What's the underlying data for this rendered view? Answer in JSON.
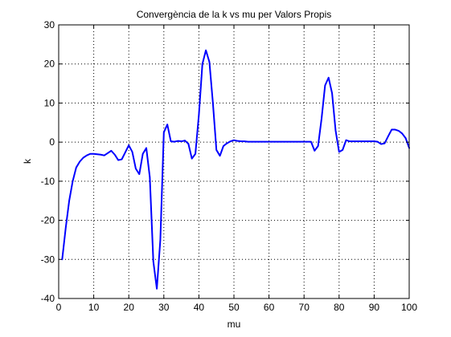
{
  "chart_data": {
    "type": "line",
    "title": "Convergència de la k vs mu per Valors Propis",
    "xlabel": "mu",
    "ylabel": "k",
    "xlim": [
      0,
      100
    ],
    "ylim": [
      -40,
      30
    ],
    "xticks": [
      0,
      10,
      20,
      30,
      40,
      50,
      60,
      70,
      80,
      90,
      100
    ],
    "yticks": [
      -40,
      -30,
      -20,
      -10,
      0,
      10,
      20,
      30
    ],
    "grid": true,
    "grid_style": "dotted",
    "line_color": "#0000ff",
    "series": [
      {
        "x": [
          1,
          2,
          3,
          4,
          5,
          6,
          7,
          8,
          9,
          10,
          11,
          12,
          13,
          14,
          15,
          16,
          17,
          18,
          19,
          20,
          21,
          22,
          23,
          24,
          25,
          26,
          27,
          28,
          29,
          30,
          31,
          32,
          33,
          34,
          35,
          36,
          37,
          38,
          39,
          40,
          41,
          42,
          43,
          44,
          45,
          46,
          47,
          48,
          49,
          50,
          51,
          52,
          53,
          54,
          55,
          56,
          57,
          58,
          59,
          60,
          61,
          62,
          63,
          64,
          65,
          66,
          67,
          68,
          69,
          70,
          71,
          72,
          73,
          74,
          75,
          76,
          77,
          78,
          79,
          80,
          81,
          82,
          83,
          84,
          85,
          86,
          87,
          88,
          89,
          90,
          91,
          92,
          93,
          94,
          95,
          96,
          97,
          98,
          99,
          100
        ],
        "values": [
          -30,
          -22,
          -15,
          -10,
          -6.5,
          -5,
          -4,
          -3.4,
          -3,
          -3,
          -3.1,
          -3.2,
          -3.4,
          -2.8,
          -2.2,
          -3.2,
          -4.6,
          -4.4,
          -2.6,
          -0.8,
          -2.5,
          -6.8,
          -8.2,
          -3,
          -1.5,
          -9,
          -30.5,
          -37.5,
          -25,
          2.5,
          4.5,
          0.2,
          0.1,
          0.3,
          0.2,
          0.4,
          -0.4,
          -4.2,
          -3,
          7,
          20,
          23.5,
          20.5,
          10,
          -2,
          -3.5,
          -1,
          -0.3,
          0.2,
          0.5,
          0.3,
          0.2,
          0.2,
          0.1,
          0.1,
          0.1,
          0.1,
          0.1,
          0.1,
          0.1,
          0.1,
          0.1,
          0.1,
          0.1,
          0.1,
          0.1,
          0.1,
          0.1,
          0.1,
          0.1,
          0.1,
          0.1,
          -2.2,
          -1,
          6,
          14.5,
          16.5,
          12.5,
          3,
          -2.5,
          -2,
          0.5,
          0.2,
          0.2,
          0.2,
          0.2,
          0.2,
          0.2,
          0.2,
          0.2,
          0.1,
          -0.5,
          -0.3,
          1.5,
          3.2,
          3.2,
          2.9,
          2.2,
          1,
          -1.5
        ]
      }
    ]
  }
}
